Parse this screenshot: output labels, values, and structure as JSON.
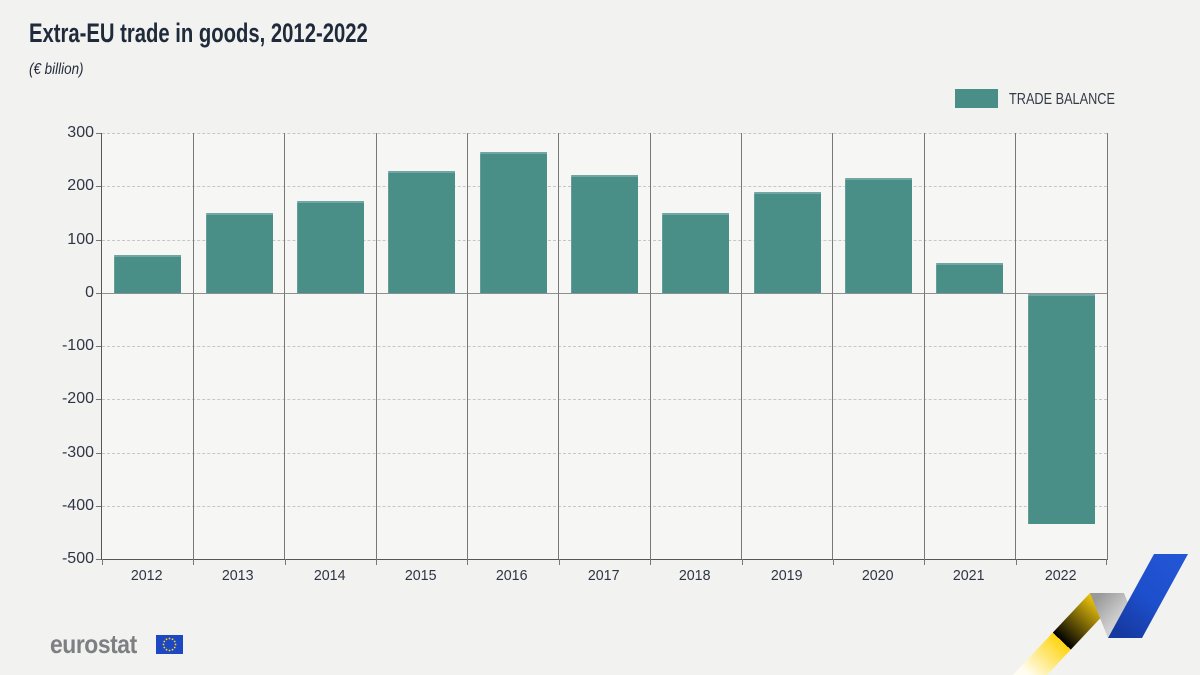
{
  "header": {
    "title": "Extra-EU trade in goods, 2012-2022",
    "subtitle": "(€ billion)"
  },
  "legend": {
    "label": "TRADE BALANCE",
    "color": "#4a8e88",
    "position": "top-right"
  },
  "chart_data": {
    "type": "bar",
    "title": "Extra-EU trade in goods, 2012-2022",
    "unit": "€ billion",
    "categories": [
      "2012",
      "2013",
      "2014",
      "2015",
      "2016",
      "2017",
      "2018",
      "2019",
      "2020",
      "2021",
      "2022"
    ],
    "series": [
      {
        "name": "TRADE BALANCE",
        "values": [
          70,
          150,
          172,
          228,
          264,
          222,
          150,
          190,
          215,
          55,
          -432
        ]
      }
    ],
    "ylim": [
      -500,
      300
    ],
    "yticks": [
      300,
      200,
      100,
      0,
      -100,
      -200,
      -300,
      -400,
      -500
    ],
    "grid": true,
    "legend_position": "top-right",
    "bar_color": "#4a8e88"
  },
  "footer": {
    "logo_text": "eurostat",
    "flag_icon": "eu-flag-icon",
    "graphic": "zigzag-arrow-graphic"
  },
  "colors": {
    "bar": "#4a8e88",
    "background": "#f2f2f0",
    "plot_background": "#f6f6f4",
    "axis": "#55565a",
    "separator": "#77787a",
    "gridline": "#c7c7c4",
    "text": "#2e3645",
    "title_text": "#1f2a3a",
    "logo_gray": "#7e7f82",
    "ribbon_yellow": "#ffd40e",
    "ribbon_blue": "#1d4ecb",
    "flag_blue": "#1e48c2",
    "flag_star_yellow": "#ffd617"
  }
}
